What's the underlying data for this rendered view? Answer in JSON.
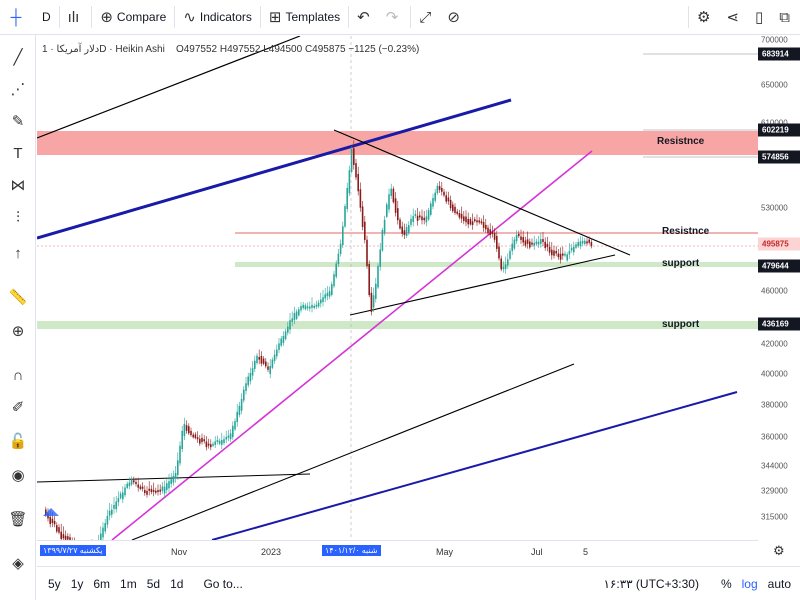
{
  "topbar": {
    "symbol_letter": "D",
    "compare_label": "Compare",
    "indicators_label": "Indicators",
    "templates_label": "Templates"
  },
  "legend": {
    "symbol": "دلار آمریکا",
    "interval": "1D",
    "style": "Heikin Ashi",
    "ohlc": "O497552  H497552  L494500  C495875  −1125 (−0.23%)"
  },
  "price_axis": {
    "ticks": [
      "700000",
      "650000",
      "610000",
      "530000",
      "460000",
      "420000",
      "400000",
      "380000",
      "360000",
      "344000",
      "329000",
      "315000"
    ],
    "tags": [
      {
        "text": "683914",
        "kind": "dark"
      },
      {
        "text": "602219",
        "kind": "dark"
      },
      {
        "text": "574856",
        "kind": "dark"
      },
      {
        "text": "495875",
        "kind": "red"
      },
      {
        "text": "479644",
        "kind": "dark"
      },
      {
        "text": "436169",
        "kind": "dark"
      }
    ]
  },
  "time_axis": {
    "labels": [
      "۱۳۹۹/۷/۲۷ یکشنبه",
      "Nov",
      "2023",
      "شنبه ۱۴۰۱/۱۲/۰",
      "May",
      "Jul",
      "5"
    ]
  },
  "annotations": [
    "Resistnce",
    "Resistnce",
    "support",
    "support"
  ],
  "bottombar": {
    "ranges": [
      "5y",
      "1y",
      "6m",
      "1m",
      "5d",
      "1d"
    ],
    "goto": "Go to...",
    "time": "۱۶:۳۳ (UTC+3:30)",
    "percent": "%",
    "log": "log",
    "auto": "auto"
  },
  "colors": {
    "up": "#26a69a",
    "down": "#8b1a1a",
    "resistance_zone": "#f8a5a5",
    "support_zone": "#cfe8c8",
    "blue_channel": "#1a1aa8",
    "magenta_trend": "#d633d6"
  },
  "chart_data": {
    "type": "candlestick",
    "style": "Heikin Ashi",
    "interval": "1D",
    "y_ticks": [
      315000,
      329000,
      344000,
      360000,
      380000,
      400000,
      420000,
      460000,
      530000,
      610000,
      650000,
      700000
    ],
    "highlighted_levels": [
      683914,
      602219,
      574856,
      495875,
      479644,
      436169
    ],
    "last_close": 495875,
    "x_labels": [
      "Nov",
      "2023",
      "May",
      "Jul",
      "5"
    ]
  }
}
